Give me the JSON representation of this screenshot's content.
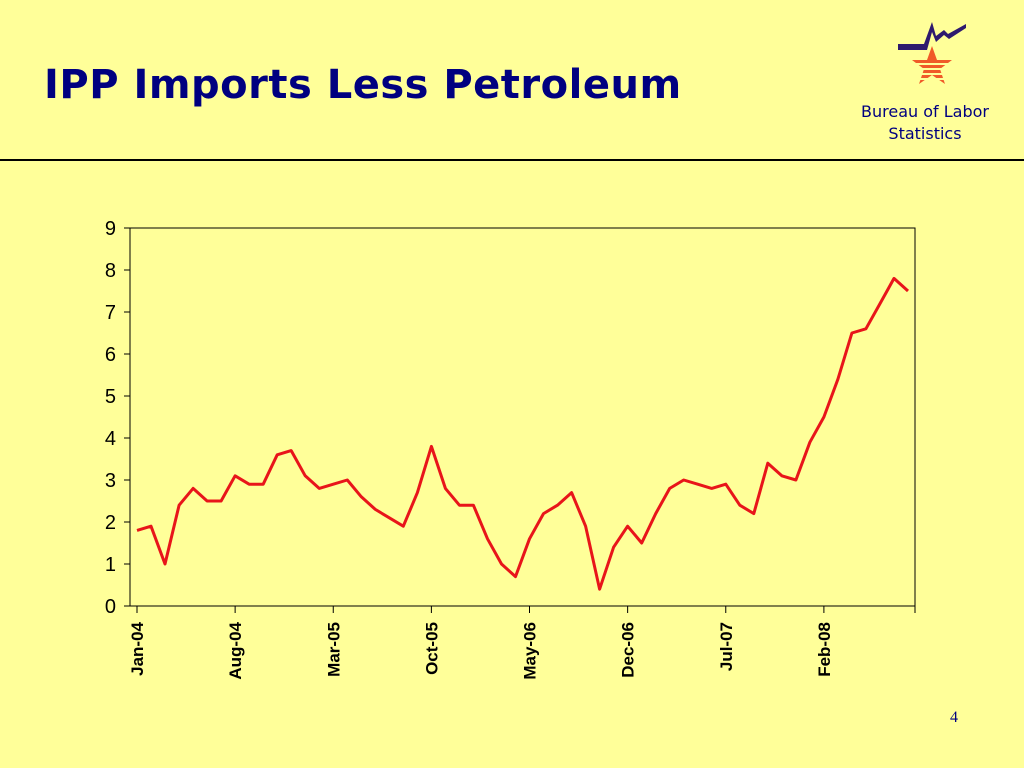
{
  "slide": {
    "title": "IPP Imports Less Petroleum",
    "page_number": "4"
  },
  "org": {
    "line1": "Bureau of Labor",
    "line2": "Statistics"
  },
  "colors": {
    "background": "#ffff99",
    "title": "#000080",
    "line": "#e8151a"
  },
  "chart_data": {
    "type": "line",
    "title": "",
    "xlabel": "",
    "ylabel": "",
    "ylim": [
      0,
      9
    ],
    "y_ticks": [
      "0",
      "1",
      "2",
      "3",
      "4",
      "5",
      "6",
      "7",
      "8",
      "9"
    ],
    "x_tick_labels": [
      "Jan-04",
      "Aug-04",
      "Mar-05",
      "Oct-05",
      "May-06",
      "Dec-06",
      "Jul-07",
      "Feb-08"
    ],
    "x_tick_every": 7,
    "grid": false,
    "series": [
      {
        "values": [
          1.8,
          1.9,
          1.0,
          2.4,
          2.8,
          2.5,
          2.5,
          3.1,
          2.9,
          2.9,
          3.6,
          3.7,
          3.1,
          2.8,
          2.9,
          3.0,
          2.6,
          2.3,
          2.1,
          1.9,
          2.7,
          3.8,
          2.8,
          2.4,
          2.4,
          1.6,
          1.0,
          0.7,
          1.6,
          2.2,
          2.4,
          2.7,
          1.9,
          0.4,
          1.4,
          1.9,
          1.5,
          2.2,
          2.8,
          3.0,
          2.9,
          2.8,
          2.9,
          2.4,
          2.2,
          3.4,
          3.1,
          3.0,
          3.9,
          4.5,
          5.4,
          6.5,
          6.6,
          7.2,
          7.8,
          7.5
        ]
      }
    ]
  }
}
